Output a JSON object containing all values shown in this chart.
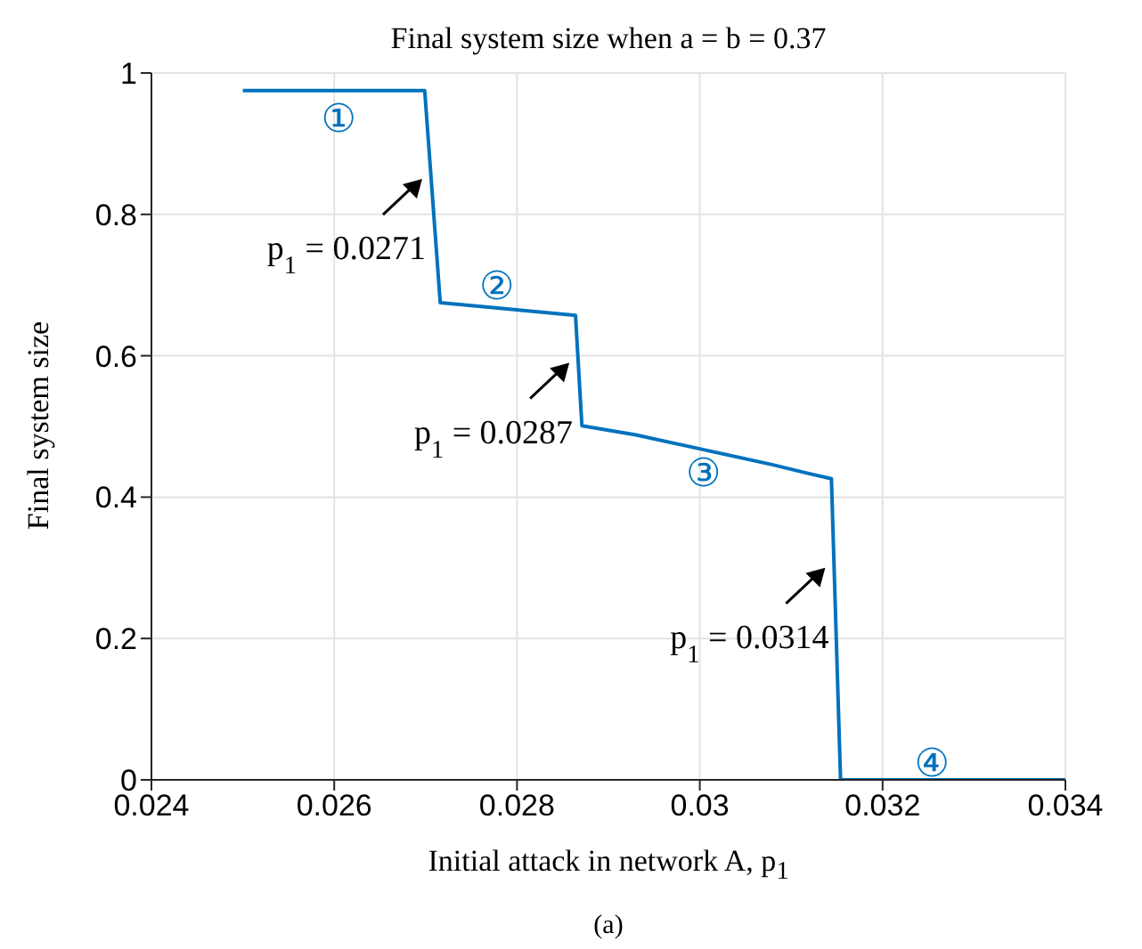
{
  "chart_data": {
    "type": "line",
    "title": "Final system size when a = b = 0.37",
    "xlabel": "Initial attack in network A, p$_{1}$",
    "ylabel": "Final system size",
    "series": [
      {
        "color": "#0072bd",
        "x": [
          0.025,
          0.02699,
          0.02716,
          0.02864,
          0.02871,
          0.0293,
          0.03001,
          0.03079,
          0.03117,
          0.03144,
          0.03154,
          0.034
        ],
        "values": [
          0.975,
          0.975,
          0.675,
          0.657,
          0.501,
          0.488,
          0.468,
          0.446,
          0.434,
          0.426,
          0,
          0
        ]
      }
    ],
    "xlim": [
      0.024,
      0.034
    ],
    "xticks": [
      0.024,
      0.026,
      0.028,
      0.03,
      0.032,
      0.034
    ],
    "ylim": [
      0,
      1
    ],
    "yticks": [
      0,
      0.2,
      0.4,
      0.6,
      0.8,
      1
    ],
    "grid": true,
    "marker": "none",
    "line_style": "solid",
    "annotations": [
      {
        "text": "p$_{1}$ = 0.0271",
        "x": 0.02706,
        "y": 0.85
      },
      {
        "text": "p$_{1}$ = 0.0287",
        "x": 0.02867,
        "y": 0.59
      },
      {
        "text": "p$_{1}$ = 0.0314",
        "x": 0.03147,
        "y": 0.3
      },
      {
        "text": "①",
        "x": 0.02605,
        "y": 0.975
      },
      {
        "text": "②",
        "x": 0.02778,
        "y": 0.667
      },
      {
        "text": "③",
        "x": 0.03004,
        "y": 0.468
      },
      {
        "text": "④",
        "x": 0.03254,
        "y": 0
      },
      "(a)"
    ]
  }
}
